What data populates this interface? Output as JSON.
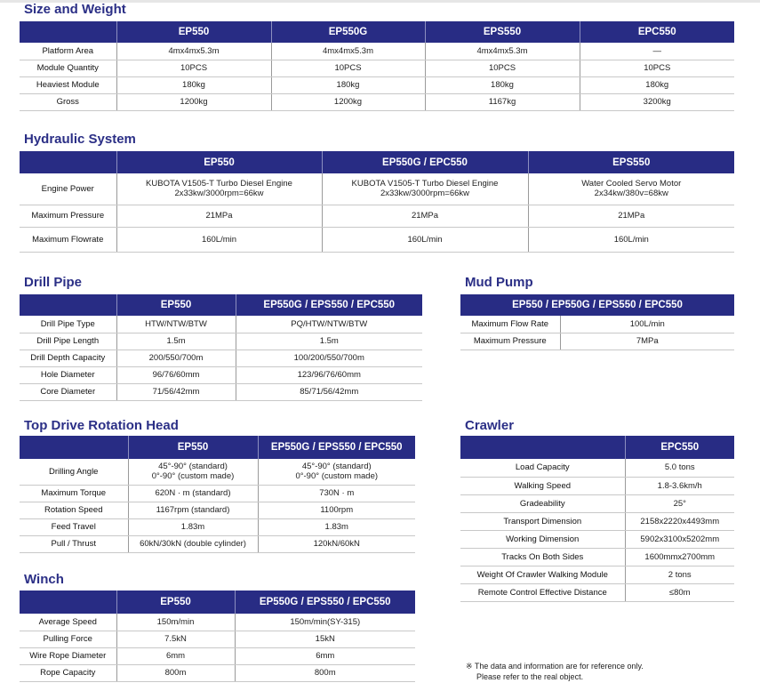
{
  "colors": {
    "header_bg": "#282c84",
    "title": "#2b2f86"
  },
  "sections": [
    {
      "id": "size-weight",
      "title": "Size and Weight",
      "headers": [
        "",
        "EP550",
        "EP550G",
        "EPS550",
        "EPC550"
      ],
      "rows": [
        [
          "Platform Area",
          "4mx4mx5.3m",
          "4mx4mx5.3m",
          "4mx4mx5.3m",
          "—"
        ],
        [
          "Module Quantity",
          "10PCS",
          "10PCS",
          "10PCS",
          "10PCS"
        ],
        [
          "Heaviest Module",
          "180kg",
          "180kg",
          "180kg",
          "180kg"
        ],
        [
          "Gross",
          "1200kg",
          "1200kg",
          "1167kg",
          "3200kg"
        ]
      ]
    },
    {
      "id": "hydraulic-system",
      "title": "Hydraulic System",
      "headers": [
        "",
        "EP550",
        "EP550G / EPC550",
        "EPS550"
      ],
      "rows": [
        [
          "Engine Power",
          "KUBOTA V1505-T Turbo Diesel Engine\n2x33kw/3000rpm=66kw",
          "KUBOTA V1505-T Turbo Diesel Engine\n2x33kw/3000rpm=66kw",
          "Water Cooled Servo Motor\n2x34kw/380v=68kw"
        ],
        [
          "Maximum Pressure",
          "21MPa",
          "21MPa",
          "21MPa"
        ],
        [
          "Maximum Flowrate",
          "160L/min",
          "160L/min",
          "160L/min"
        ]
      ]
    },
    {
      "id": "drill-pipe",
      "title": "Drill Pipe",
      "headers": [
        "",
        "EP550",
        "EP550G / EPS550 / EPC550"
      ],
      "rows": [
        [
          "Drill Pipe Type",
          "HTW/NTW/BTW",
          "PQ/HTW/NTW/BTW"
        ],
        [
          "Drill Pipe Length",
          "1.5m",
          "1.5m"
        ],
        [
          "Drill Depth Capacity",
          "200/550/700m",
          "100/200/550/700m"
        ],
        [
          "Hole Diameter",
          "96/76/60mm",
          "123/96/76/60mm"
        ],
        [
          "Core Diameter",
          "71/56/42mm",
          "85/71/56/42mm"
        ]
      ]
    },
    {
      "id": "mud-pump",
      "title": "Mud Pump",
      "headers": [
        "EP550 / EP550G / EPS550 / EPC550"
      ],
      "rows": [
        [
          "Maximum Flow Rate",
          "100L/min"
        ],
        [
          "Maximum Pressure",
          "7MPa"
        ]
      ]
    },
    {
      "id": "top-drive-rotation-head",
      "title": "Top Drive Rotation Head",
      "headers": [
        "",
        "EP550",
        "EP550G / EPS550 / EPC550"
      ],
      "rows": [
        [
          "Drilling Angle",
          "45°-90° (standard)\n0°-90° (custom made)",
          "45°-90° (standard)\n0°-90° (custom made)"
        ],
        [
          "Maximum Torque",
          "620N · m (standard)",
          "730N · m"
        ],
        [
          "Rotation Speed",
          "1167rpm (standard)",
          "1100rpm"
        ],
        [
          "Feed Travel",
          "1.83m",
          "1.83m"
        ],
        [
          "Pull / Thrust",
          "60kN/30kN (double cylinder)",
          "120kN/60kN"
        ]
      ]
    },
    {
      "id": "winch",
      "title": "Winch",
      "headers": [
        "",
        "EP550",
        "EP550G / EPS550 / EPC550"
      ],
      "rows": [
        [
          "Average Speed",
          "150m/min",
          "150m/min(SY-315)"
        ],
        [
          "Pulling Force",
          "7.5kN",
          "15kN"
        ],
        [
          "Wire Rope Diameter",
          "6mm",
          "6mm"
        ],
        [
          "Rope Capacity",
          "800m",
          "800m"
        ]
      ]
    },
    {
      "id": "crawler",
      "title": "Crawler",
      "headers": [
        "",
        "EPC550"
      ],
      "rows": [
        [
          "Load Capacity",
          "5.0 tons"
        ],
        [
          "Walking Speed",
          "1.8-3.6km/h"
        ],
        [
          "Gradeability",
          "25°"
        ],
        [
          "Transport Dimension",
          "2158x2220x4493mm"
        ],
        [
          "Working Dimension",
          "5902x3100x5202mm"
        ],
        [
          "Tracks On Both Sides",
          "1600mmx2700mm"
        ],
        [
          "Weight Of Crawler Walking Module",
          "2 tons"
        ],
        [
          "Remote Control Effective Distance",
          "≤80m"
        ]
      ]
    }
  ],
  "footnote": {
    "line1": "※ The data and information are for reference only.",
    "line2": "Please refer to the real object."
  }
}
